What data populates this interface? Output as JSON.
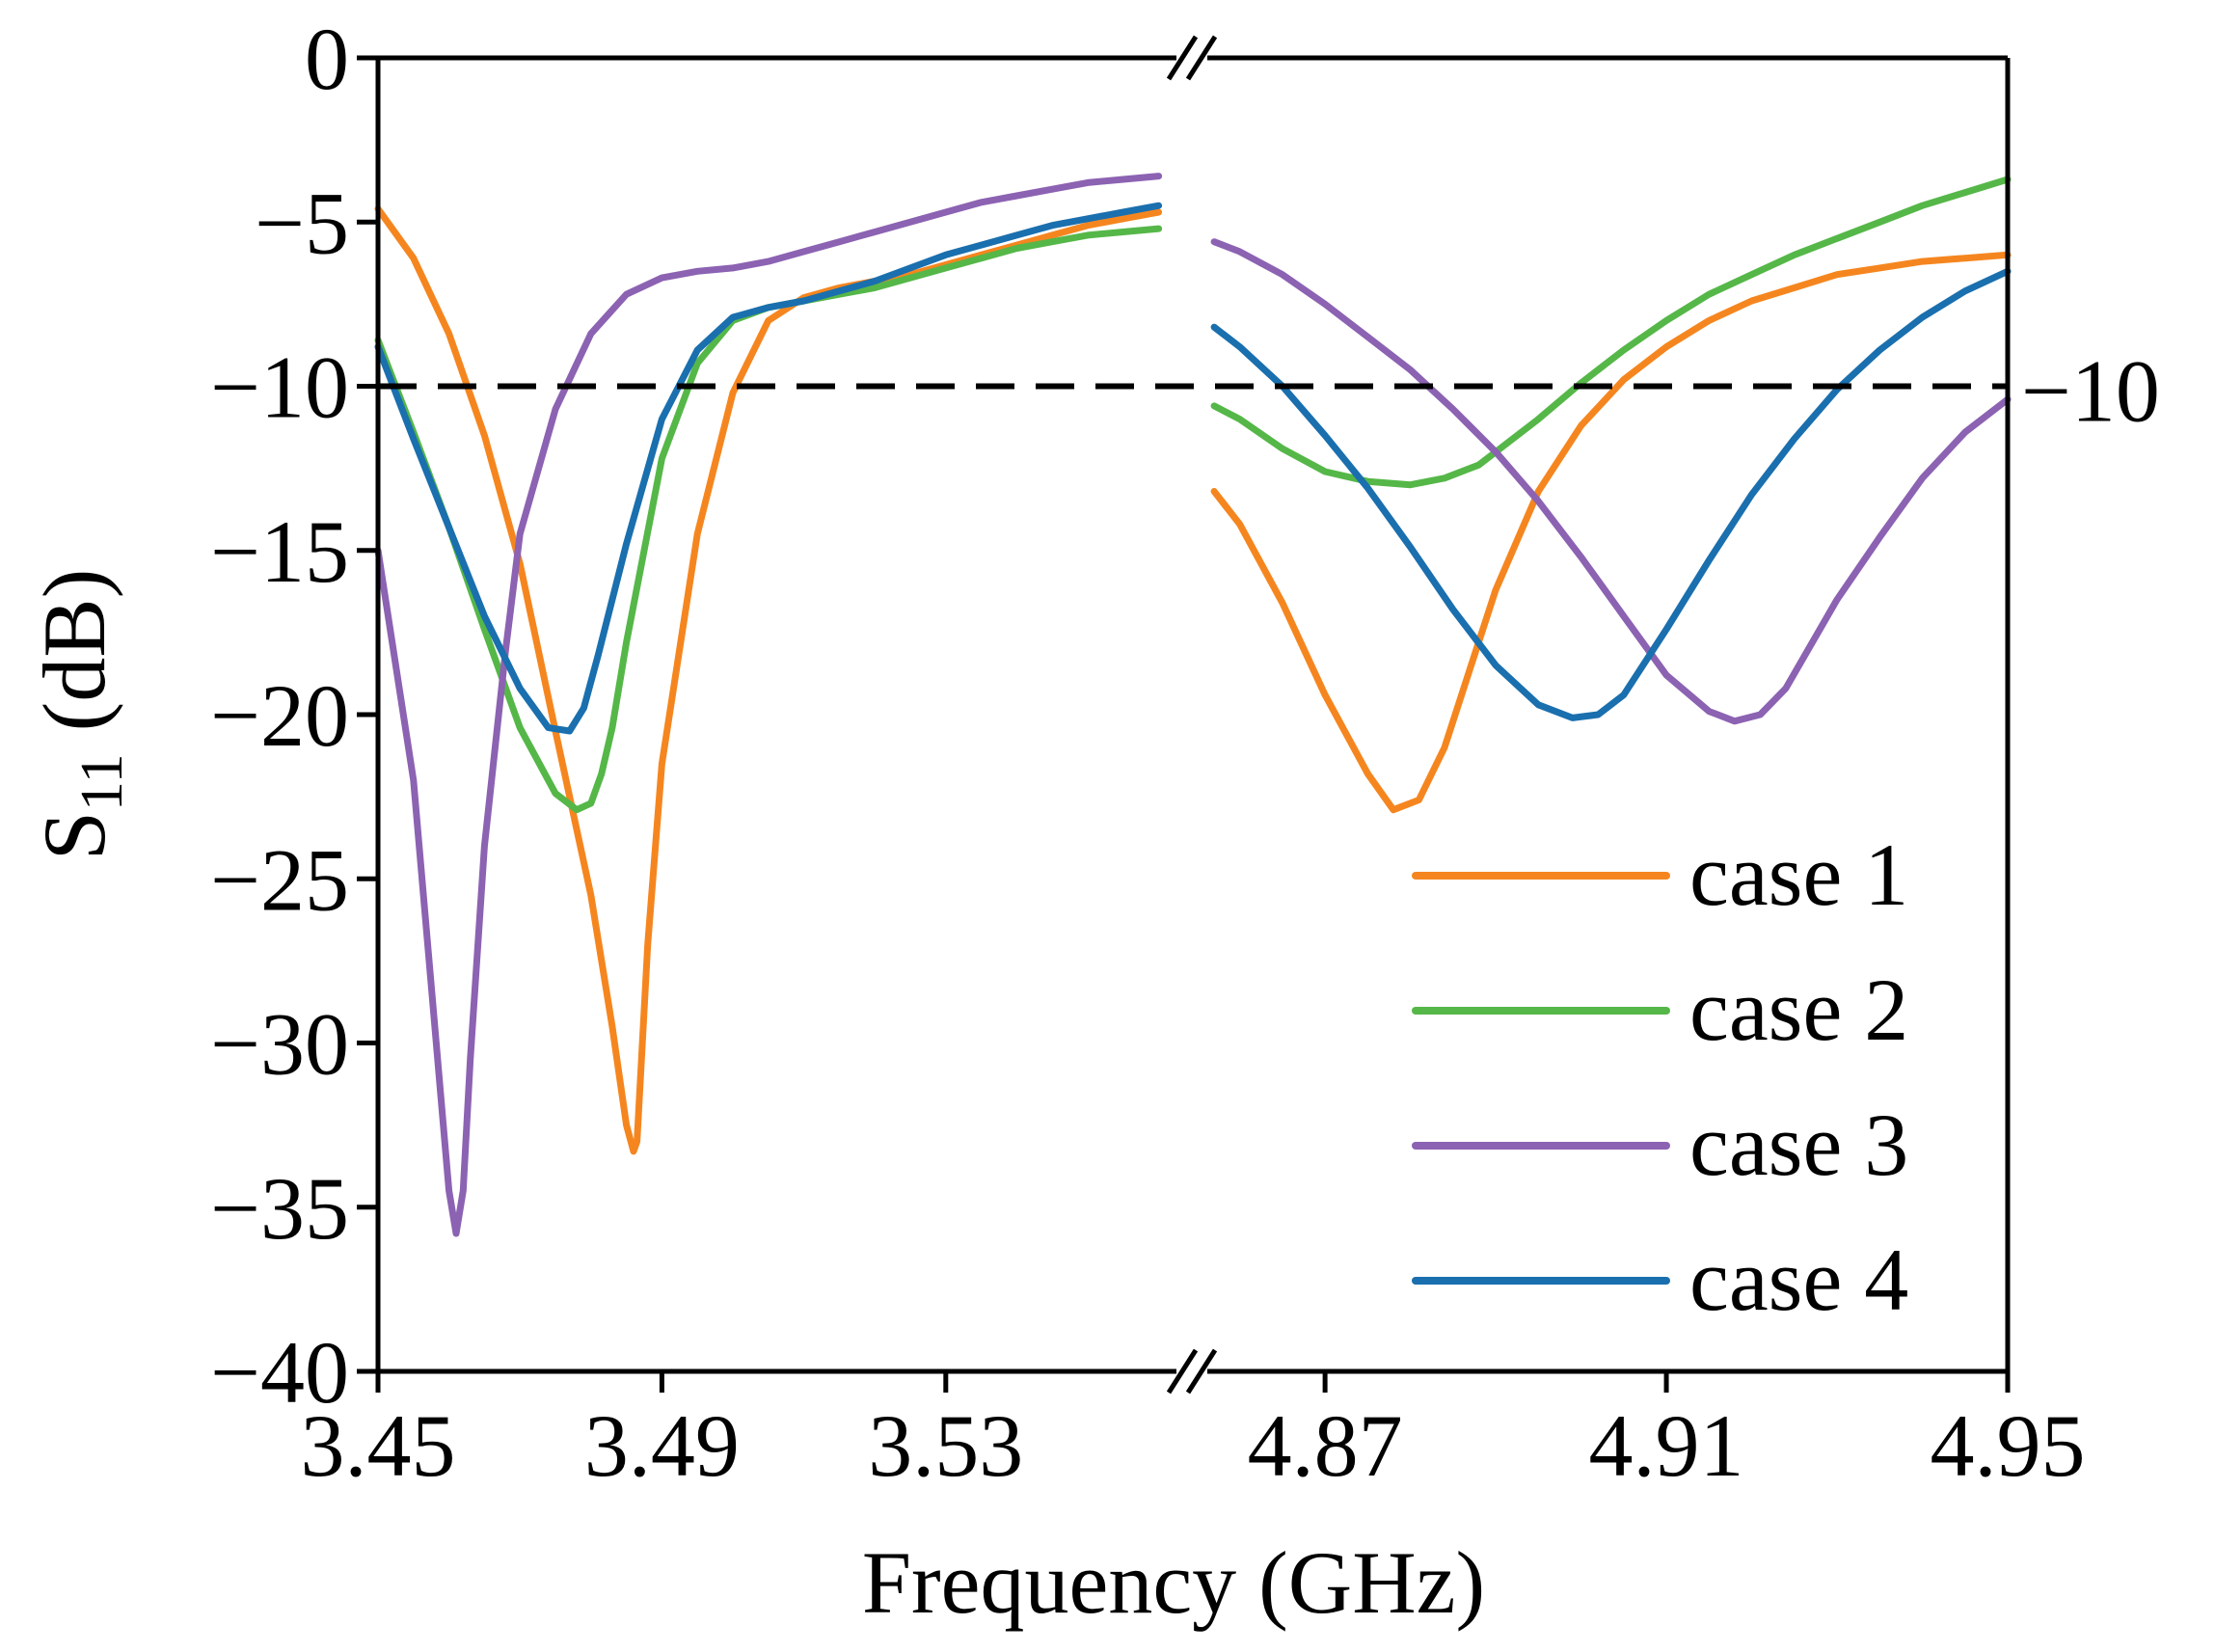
{
  "chart_data": {
    "type": "line",
    "title": "",
    "xlabel": "Frequency (GHz)",
    "ylabel": "S",
    "ylabel_sub": "11",
    "ylabel_unit": " (dB)",
    "ylim": [
      -40,
      0
    ],
    "yticks": [
      0,
      -5,
      -10,
      -15,
      -20,
      -25,
      -30,
      -35,
      -40
    ],
    "ytick_labels": [
      "0",
      "−5",
      "−10",
      "−15",
      "−20",
      "−25",
      "−30",
      "−35",
      "−40"
    ],
    "xlim_left": [
      3.45,
      3.5625
    ],
    "xlim_right": [
      4.8562,
      4.95
    ],
    "xticks_left": [
      3.45,
      3.49,
      3.53
    ],
    "xtick_labels_left": [
      "3.45",
      "3.49",
      "3.53"
    ],
    "xticks_right": [
      4.87,
      4.91,
      4.95
    ],
    "xtick_labels_right": [
      "4.87",
      "4.91",
      "4.95"
    ],
    "axis_break": true,
    "reference_line": {
      "value": -10,
      "label": "−10",
      "color": "#000000",
      "style": "dashed"
    },
    "legend_position": "bottom-right",
    "grid": false,
    "series": [
      {
        "name": "case 1",
        "color": "#F5861F",
        "x_left": [
          3.45,
          3.455,
          3.46,
          3.465,
          3.47,
          3.475,
          3.48,
          3.483,
          3.485,
          3.486,
          3.4865,
          3.487,
          3.488,
          3.49,
          3.495,
          3.5,
          3.505,
          3.51,
          3.515,
          3.52,
          3.525,
          3.53,
          3.535,
          3.54,
          3.545,
          3.55,
          3.555,
          3.56
        ],
        "y_left": [
          -4.6,
          -6.1,
          -8.4,
          -11.5,
          -15.4,
          -20.5,
          -25.5,
          -29.5,
          -32.5,
          -33.3,
          -33.0,
          -31.0,
          -27.0,
          -21.5,
          -14.5,
          -10.2,
          -8.0,
          -7.3,
          -7.0,
          -6.8,
          -6.6,
          -6.3,
          -6.0,
          -5.7,
          -5.4,
          -5.1,
          -4.9,
          -4.7
        ],
        "x_right": [
          4.857,
          4.86,
          4.865,
          4.87,
          4.875,
          4.878,
          4.881,
          4.884,
          4.887,
          4.89,
          4.895,
          4.9,
          4.905,
          4.91,
          4.915,
          4.92,
          4.925,
          4.93,
          4.935,
          4.94,
          4.945,
          4.95
        ],
        "y_right": [
          -13.2,
          -14.2,
          -16.6,
          -19.4,
          -21.8,
          -22.9,
          -22.6,
          -21.0,
          -18.6,
          -16.2,
          -13.2,
          -11.2,
          -9.8,
          -8.8,
          -8.0,
          -7.4,
          -7.0,
          -6.6,
          -6.4,
          -6.2,
          -6.1,
          -6.0
        ]
      },
      {
        "name": "case 2",
        "color": "#55B748",
        "x_left": [
          3.45,
          3.455,
          3.46,
          3.465,
          3.47,
          3.475,
          3.478,
          3.48,
          3.4815,
          3.483,
          3.485,
          3.49,
          3.495,
          3.5,
          3.505,
          3.51,
          3.515,
          3.52,
          3.525,
          3.53,
          3.535,
          3.54,
          3.545,
          3.55,
          3.555,
          3.56
        ],
        "y_left": [
          -8.6,
          -11.4,
          -14.3,
          -17.4,
          -20.4,
          -22.4,
          -22.9,
          -22.7,
          -21.8,
          -20.4,
          -17.8,
          -12.2,
          -9.3,
          -8.0,
          -7.6,
          -7.4,
          -7.2,
          -7.0,
          -6.7,
          -6.4,
          -6.1,
          -5.8,
          -5.6,
          -5.4,
          -5.3,
          -5.2
        ],
        "x_right": [
          4.857,
          4.86,
          4.865,
          4.87,
          4.875,
          4.88,
          4.884,
          4.888,
          4.89,
          4.895,
          4.9,
          4.905,
          4.91,
          4.915,
          4.92,
          4.925,
          4.93,
          4.935,
          4.94,
          4.945,
          4.95
        ],
        "y_right": [
          -10.6,
          -11.0,
          -11.9,
          -12.6,
          -12.9,
          -13.0,
          -12.8,
          -12.4,
          -12.0,
          -11.0,
          -9.9,
          -8.9,
          -8.0,
          -7.2,
          -6.6,
          -6.0,
          -5.5,
          -5.0,
          -4.5,
          -4.1,
          -3.7
        ]
      },
      {
        "name": "case 3",
        "color": "#8C62B2",
        "x_left": [
          3.45,
          3.455,
          3.458,
          3.46,
          3.461,
          3.462,
          3.463,
          3.465,
          3.468,
          3.47,
          3.475,
          3.48,
          3.485,
          3.49,
          3.495,
          3.5,
          3.505,
          3.51,
          3.515,
          3.52,
          3.525,
          3.53,
          3.535,
          3.54,
          3.545,
          3.55,
          3.555,
          3.56
        ],
        "y_left": [
          -15.0,
          -22.0,
          -29.5,
          -34.5,
          -35.8,
          -34.5,
          -30.5,
          -24.0,
          -18.0,
          -14.5,
          -10.7,
          -8.4,
          -7.2,
          -6.7,
          -6.5,
          -6.4,
          -6.2,
          -5.9,
          -5.6,
          -5.3,
          -5.0,
          -4.7,
          -4.4,
          -4.2,
          -4.0,
          -3.8,
          -3.7,
          -3.6
        ],
        "x_right": [
          4.857,
          4.86,
          4.865,
          4.87,
          4.875,
          4.88,
          4.885,
          4.89,
          4.895,
          4.9,
          4.905,
          4.91,
          4.915,
          4.918,
          4.921,
          4.924,
          4.93,
          4.935,
          4.94,
          4.945,
          4.95
        ],
        "y_right": [
          -5.6,
          -5.9,
          -6.6,
          -7.5,
          -8.5,
          -9.5,
          -10.7,
          -12.0,
          -13.5,
          -15.2,
          -17.0,
          -18.8,
          -19.9,
          -20.2,
          -20.0,
          -19.2,
          -16.5,
          -14.6,
          -12.8,
          -11.4,
          -10.4
        ]
      },
      {
        "name": "case 4",
        "color": "#1A6FAE",
        "x_left": [
          3.45,
          3.455,
          3.46,
          3.465,
          3.47,
          3.474,
          3.477,
          3.479,
          3.481,
          3.485,
          3.49,
          3.495,
          3.5,
          3.505,
          3.51,
          3.515,
          3.52,
          3.525,
          3.53,
          3.535,
          3.54,
          3.545,
          3.55,
          3.555,
          3.56
        ],
        "y_left": [
          -8.8,
          -11.6,
          -14.3,
          -17.0,
          -19.2,
          -20.4,
          -20.5,
          -19.8,
          -18.2,
          -14.8,
          -11.0,
          -8.9,
          -7.9,
          -7.6,
          -7.4,
          -7.1,
          -6.8,
          -6.4,
          -6.0,
          -5.7,
          -5.4,
          -5.1,
          -4.9,
          -4.7,
          -4.5
        ],
        "x_right": [
          4.857,
          4.86,
          4.865,
          4.87,
          4.875,
          4.88,
          4.885,
          4.89,
          4.895,
          4.899,
          4.902,
          4.905,
          4.91,
          4.915,
          4.92,
          4.925,
          4.93,
          4.935,
          4.94,
          4.945,
          4.95
        ],
        "y_right": [
          -8.2,
          -8.8,
          -10.0,
          -11.5,
          -13.1,
          -14.9,
          -16.8,
          -18.5,
          -19.7,
          -20.1,
          -20.0,
          -19.4,
          -17.4,
          -15.3,
          -13.3,
          -11.6,
          -10.1,
          -8.9,
          -7.9,
          -7.1,
          -6.5
        ]
      }
    ]
  }
}
